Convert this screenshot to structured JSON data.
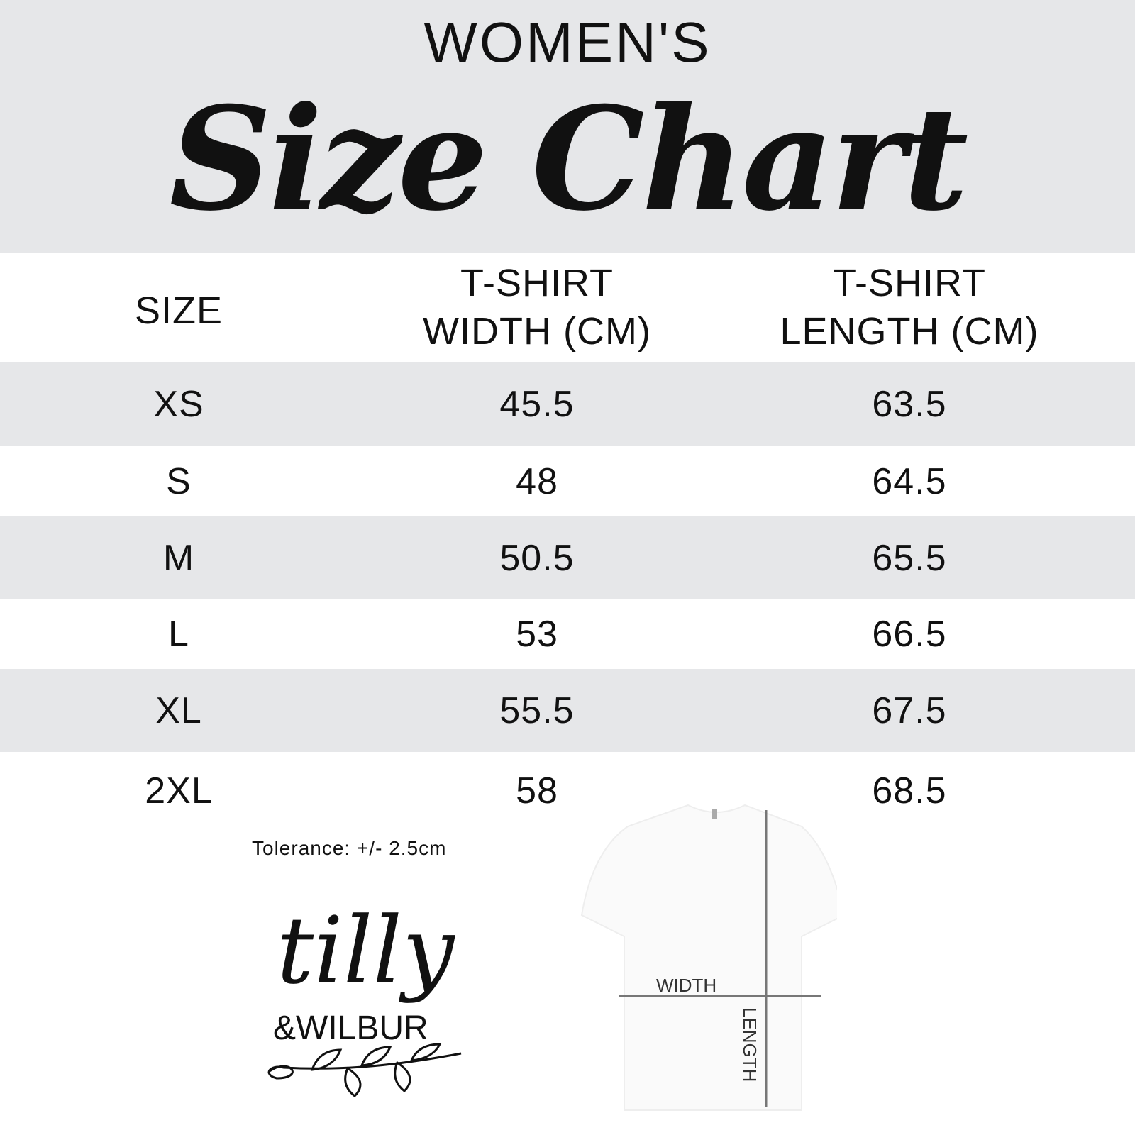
{
  "header": {
    "overline": "WOMEN'S",
    "title": "Size Chart"
  },
  "table": {
    "columns": [
      "SIZE",
      "T-SHIRT WIDTH (CM)",
      "T-SHIRT LENGTH (CM)"
    ],
    "column_lines": [
      [
        "SIZE"
      ],
      [
        "T-SHIRT",
        "WIDTH (CM)"
      ],
      [
        "T-SHIRT",
        "LENGTH (CM)"
      ]
    ],
    "rows": [
      {
        "size": "XS",
        "width": "45.5",
        "length": "63.5"
      },
      {
        "size": "S",
        "width": "48",
        "length": "64.5"
      },
      {
        "size": "M",
        "width": "50.5",
        "length": "65.5"
      },
      {
        "size": "L",
        "width": "53",
        "length": "66.5"
      },
      {
        "size": "XL",
        "width": "55.5",
        "length": "67.5"
      },
      {
        "size": "2XL",
        "width": "58",
        "length": "68.5"
      }
    ]
  },
  "tolerance": "Tolerance: +/- 2.5cm",
  "diagram": {
    "width_label": "WIDTH",
    "length_label": "LENGTH"
  },
  "logo": {
    "line1": "tilly",
    "line2": "&WILBUR"
  },
  "colors": {
    "band": "#e6e7e9",
    "text": "#111111",
    "measure_line": "#777777"
  }
}
